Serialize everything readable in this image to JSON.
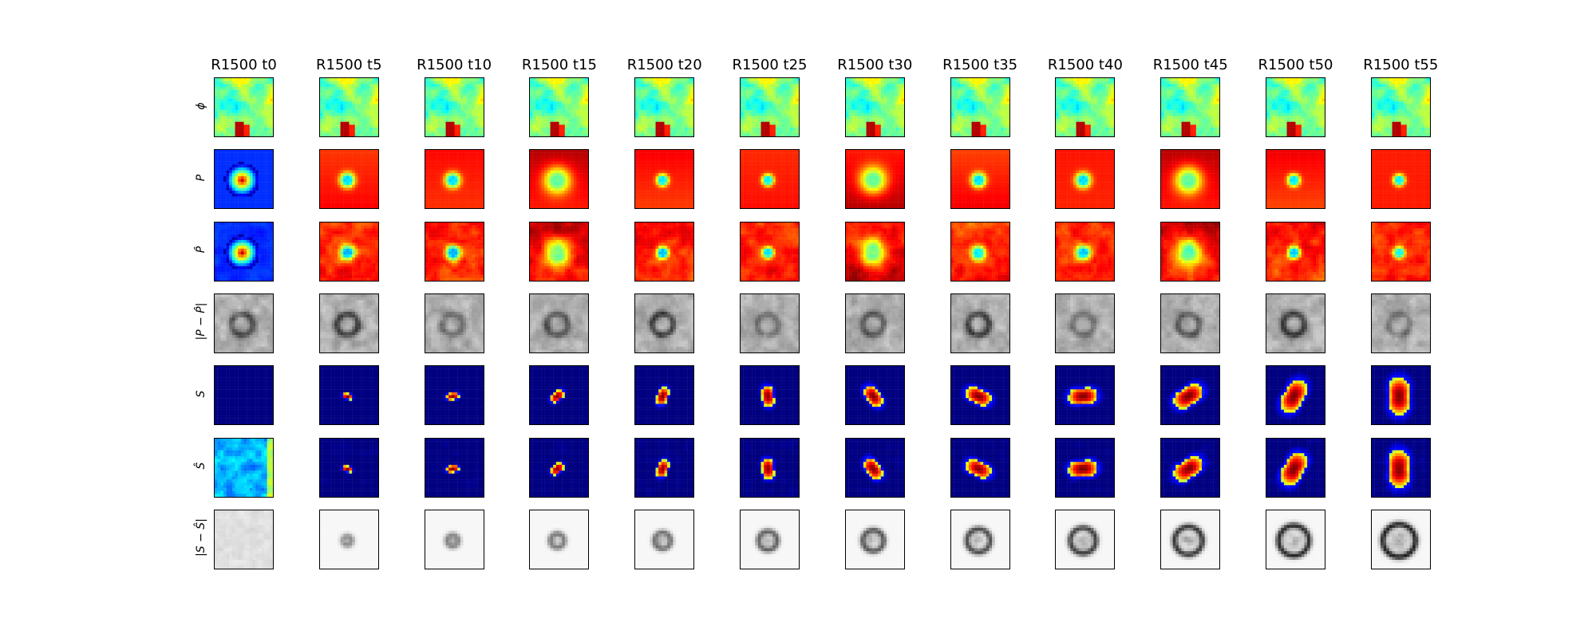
{
  "chart_data": {
    "type": "image-grid",
    "columns": [
      "R1500 t0",
      "R1500 t5",
      "R1500 t10",
      "R1500 t15",
      "R1500 t20",
      "R1500 t25",
      "R1500 t30",
      "R1500 t35",
      "R1500 t40",
      "R1500 t45",
      "R1500 t50",
      "R1500 t55"
    ],
    "rows": [
      {
        "label": "ϕ",
        "colormap": "jet"
      },
      {
        "label": "P",
        "colormap": "jet"
      },
      {
        "label": "P̂",
        "colormap": "jet"
      },
      {
        "label": "|P − P̂|",
        "colormap": "gray"
      },
      {
        "label": "S",
        "colormap": "jet"
      },
      {
        "label": "Ŝ",
        "colormap": "jet"
      },
      {
        "label": "|S − Ŝ|",
        "colormap": "gray"
      }
    ]
  }
}
